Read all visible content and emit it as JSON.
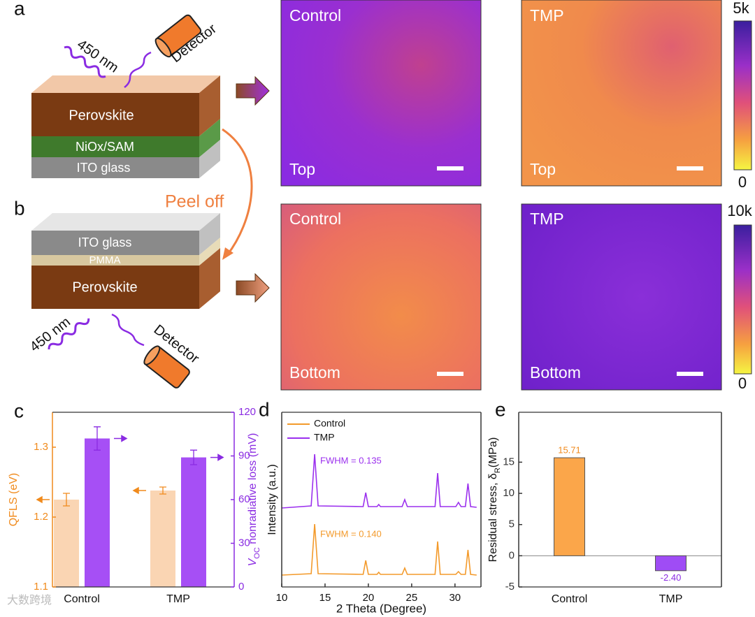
{
  "figure": {
    "panel_labels": [
      "a",
      "b",
      "c",
      "d",
      "e"
    ],
    "diagram_a": {
      "light": "450 nm",
      "detector": "Detector",
      "layers": [
        "Perovskite",
        "NiOx/SAM",
        "ITO glass"
      ]
    },
    "peel": "Peel off",
    "diagram_b": {
      "light": "450 nm",
      "detector": "Detector",
      "layers": [
        "ITO glass",
        "PMMA",
        "Perovskite"
      ]
    },
    "maps": [
      {
        "sample": "Control",
        "side": "Top"
      },
      {
        "sample": "TMP",
        "side": "Top"
      },
      {
        "sample": "Control",
        "side": "Bottom"
      },
      {
        "sample": "TMP",
        "side": "Bottom"
      }
    ],
    "colorbars": [
      {
        "max": "5k",
        "min": "0"
      },
      {
        "max": "10k",
        "min": "0"
      }
    ],
    "watermark": "大数跨境"
  },
  "chart_data": [
    {
      "type": "bar",
      "categories": [
        "Control",
        "TMP"
      ],
      "ylabel": "QFLS (eV)",
      "y2label_parts": [
        "V",
        "OC",
        " nonradiative loss (mV)"
      ],
      "ylim": [
        1.1,
        1.35
      ],
      "yticks": [
        1.1,
        1.2,
        1.3
      ],
      "y2lim": [
        0,
        120
      ],
      "y2ticks": [
        0,
        30,
        60,
        90,
        120
      ],
      "series": [
        {
          "color": "#fad5b3",
          "values": [
            1.225,
            1.238
          ],
          "errors": [
            0.009,
            0.005
          ]
        },
        {
          "axis": "y2",
          "color": "#a64ff5",
          "values": [
            102,
            89
          ],
          "errors": [
            8,
            5
          ]
        }
      ]
    },
    {
      "type": "line",
      "xlabel": "2 Theta (Degree)",
      "ylabel": "Intensity (a.u.)",
      "xlim": [
        10,
        33
      ],
      "xticks": [
        10,
        15,
        20,
        25,
        30
      ],
      "ylim": [
        0,
        250
      ],
      "legend": "upper left",
      "annotations": [
        "FWHM = 0.135",
        "FWHM = 0.140"
      ],
      "x": [
        10,
        13.4,
        13.8,
        14.2,
        19.4,
        19.7,
        20,
        21,
        21.2,
        21.4,
        23.9,
        24.2,
        24.5,
        27.7,
        28,
        28.3,
        30.1,
        30.4,
        30.7,
        31.2,
        31.5,
        31.8,
        32.5
      ],
      "series": [
        {
          "name": "Control",
          "color": "#f39a2b",
          "values": [
            17,
            19,
            90,
            19,
            18,
            38,
            18,
            18,
            21,
            18,
            18,
            27,
            18,
            18,
            65,
            18,
            18,
            22,
            18,
            18,
            53,
            18,
            17
          ]
        },
        {
          "name": "TMP",
          "color": "#9b30ee",
          "values": [
            113,
            116,
            190,
            116,
            115,
            135,
            115,
            115,
            118,
            115,
            115,
            125,
            115,
            115,
            163,
            115,
            115,
            121,
            115,
            115,
            148,
            115,
            114
          ]
        }
      ]
    },
    {
      "type": "bar",
      "categories": [
        "Control",
        "TMP"
      ],
      "values": [
        15.71,
        -2.4
      ],
      "value_labels": [
        "15.71",
        "-2.40"
      ],
      "colors": [
        "#fba64a",
        "#9f4cf5"
      ],
      "label_colors": [
        "#f08a1c",
        "#8a2be2"
      ],
      "ylim": [
        -5,
        23
      ],
      "yticks": [
        -5,
        0,
        5,
        10,
        15
      ],
      "ylabel_parts": [
        "Residual stress, δ",
        "R",
        "(MPa)"
      ]
    }
  ]
}
